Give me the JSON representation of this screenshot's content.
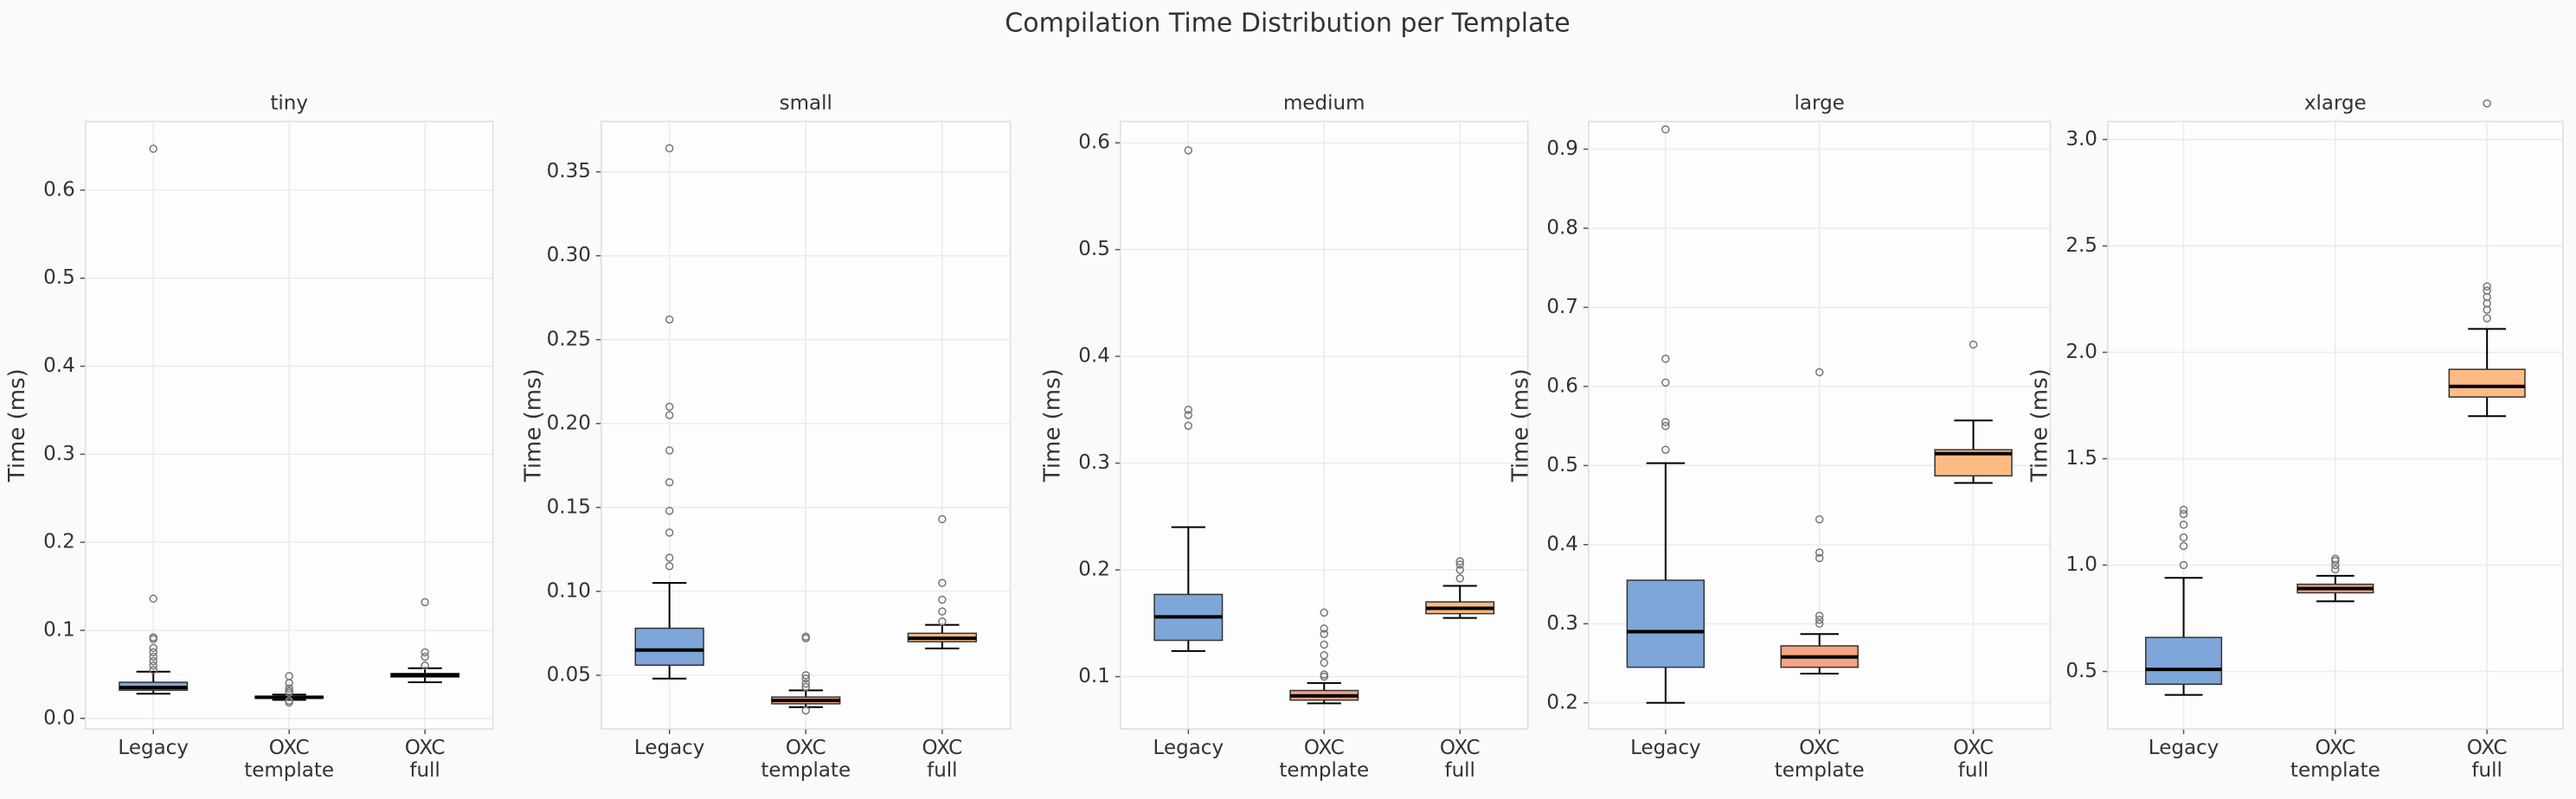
{
  "title": "Compilation Time Distribution per Template",
  "chart_data": [
    {
      "type": "box",
      "title": "tiny",
      "ylabel": "Time (ms)",
      "categories": [
        "Legacy",
        "OXC\ntemplate",
        "OXC\nfull"
      ],
      "colors": [
        "#7ea6d8",
        "#f4a582",
        "#fdbb84"
      ],
      "boxes": [
        {
          "whislo": 0.028,
          "q1": 0.032,
          "med": 0.035,
          "q3": 0.041,
          "whishi": 0.053,
          "fliers": [
            0.055,
            0.06,
            0.065,
            0.07,
            0.075,
            0.08,
            0.09,
            0.092,
            0.136,
            0.647
          ]
        },
        {
          "whislo": 0.021,
          "q1": 0.023,
          "med": 0.024,
          "q3": 0.025,
          "whishi": 0.027,
          "fliers": [
            0.018,
            0.02,
            0.029,
            0.031,
            0.034,
            0.04,
            0.048
          ]
        },
        {
          "whislo": 0.041,
          "q1": 0.047,
          "med": 0.049,
          "q3": 0.051,
          "whishi": 0.057,
          "fliers": [
            0.06,
            0.07,
            0.075,
            0.132
          ]
        }
      ],
      "ylim": [
        -0.012,
        0.678
      ],
      "yticks": [
        {
          "value": 0,
          "label": "0.0"
        },
        0.1,
        0.2,
        0.3,
        0.4,
        0.5,
        0.6
      ],
      "grid": true
    },
    {
      "type": "box",
      "title": "small",
      "ylabel": "Time (ms)",
      "categories": [
        "Legacy",
        "OXC\ntemplate",
        "OXC\nfull"
      ],
      "colors": [
        "#7ea6d8",
        "#f4a582",
        "#fdbb84"
      ],
      "boxes": [
        {
          "whislo": 0.048,
          "q1": 0.056,
          "med": 0.065,
          "q3": 0.078,
          "whishi": 0.105,
          "fliers": [
            0.115,
            0.12,
            0.135,
            0.148,
            0.165,
            0.184,
            0.205,
            0.21,
            0.262,
            0.364
          ]
        },
        {
          "whislo": 0.031,
          "q1": 0.033,
          "med": 0.035,
          "q3": 0.037,
          "whishi": 0.041,
          "fliers": [
            0.029,
            0.043,
            0.045,
            0.048,
            0.05,
            0.072,
            0.073
          ]
        },
        {
          "whislo": 0.066,
          "q1": 0.07,
          "med": 0.072,
          "q3": 0.075,
          "whishi": 0.08,
          "fliers": [
            0.082,
            0.088,
            0.095,
            0.105,
            0.143
          ]
        }
      ],
      "ylim": [
        0.018,
        0.38
      ],
      "yticks": [
        0.05,
        {
          "value": 0.1,
          "label": "0.10"
        },
        0.15,
        {
          "value": 0.2,
          "label": "0.20"
        },
        0.25,
        {
          "value": 0.3,
          "label": "0.30"
        },
        0.35
      ],
      "grid": true
    },
    {
      "type": "box",
      "title": "medium",
      "ylabel": "Time (ms)",
      "categories": [
        "Legacy",
        "OXC\ntemplate",
        "OXC\nfull"
      ],
      "colors": [
        "#7ea6d8",
        "#f4a582",
        "#fdbb84"
      ],
      "boxes": [
        {
          "whislo": 0.124,
          "q1": 0.134,
          "med": 0.156,
          "q3": 0.177,
          "whishi": 0.24,
          "fliers": [
            0.335,
            0.345,
            0.35,
            0.593
          ]
        },
        {
          "whislo": 0.075,
          "q1": 0.078,
          "med": 0.082,
          "q3": 0.087,
          "whishi": 0.094,
          "fliers": [
            0.1,
            0.102,
            0.113,
            0.12,
            0.13,
            0.14,
            0.145,
            0.16
          ]
        },
        {
          "whislo": 0.155,
          "q1": 0.159,
          "med": 0.164,
          "q3": 0.17,
          "whishi": 0.185,
          "fliers": [
            0.192,
            0.2,
            0.205,
            0.208
          ]
        }
      ],
      "ylim": [
        0.051,
        0.62
      ],
      "yticks": [
        0.1,
        0.2,
        0.3,
        0.4,
        0.5,
        0.6
      ],
      "grid": true
    },
    {
      "type": "box",
      "title": "large",
      "ylabel": "Time (ms)",
      "categories": [
        "Legacy",
        "OXC\ntemplate",
        "OXC\nfull"
      ],
      "colors": [
        "#7ea6d8",
        "#f4a582",
        "#fdbb84"
      ],
      "boxes": [
        {
          "whislo": 0.2,
          "q1": 0.245,
          "med": 0.29,
          "q3": 0.355,
          "whishi": 0.503,
          "fliers": [
            0.52,
            0.55,
            0.555,
            0.605,
            0.635,
            0.925
          ]
        },
        {
          "whislo": 0.237,
          "q1": 0.245,
          "med": 0.258,
          "q3": 0.272,
          "whishi": 0.287,
          "fliers": [
            0.3,
            0.305,
            0.31,
            0.383,
            0.39,
            0.432,
            0.618
          ]
        },
        {
          "whislo": 0.478,
          "q1": 0.487,
          "med": 0.515,
          "q3": 0.52,
          "whishi": 0.557,
          "fliers": [
            0.653
          ]
        }
      ],
      "ylim": [
        0.167,
        0.935
      ],
      "yticks": [
        0.2,
        0.3,
        0.4,
        0.5,
        0.6,
        0.7,
        0.8,
        0.9
      ],
      "grid": true
    },
    {
      "type": "box",
      "title": "xlarge",
      "ylabel": "Time (ms)",
      "categories": [
        "Legacy",
        "OXC\ntemplate",
        "OXC\nfull"
      ],
      "colors": [
        "#7ea6d8",
        "#f4a582",
        "#fdbb84"
      ],
      "boxes": [
        {
          "whislo": 0.39,
          "q1": 0.44,
          "med": 0.51,
          "q3": 0.66,
          "whishi": 0.94,
          "fliers": [
            1.0,
            1.09,
            1.13,
            1.19,
            1.24,
            1.26
          ]
        },
        {
          "whislo": 0.83,
          "q1": 0.87,
          "med": 0.89,
          "q3": 0.91,
          "whishi": 0.95,
          "fliers": [
            0.98,
            1.0,
            1.02,
            1.03
          ]
        },
        {
          "whislo": 1.7,
          "q1": 1.79,
          "med": 1.84,
          "q3": 1.92,
          "whishi": 2.11,
          "fliers": [
            2.16,
            2.2,
            2.23,
            2.26,
            2.29,
            2.31,
            3.17
          ]
        }
      ],
      "ylim": [
        0.23,
        3.085
      ],
      "yticks": [
        0.5,
        {
          "value": 1.0,
          "label": "1.0"
        },
        1.5,
        {
          "value": 2.0,
          "label": "2.0"
        },
        2.5,
        {
          "value": 3.0,
          "label": "3.0"
        }
      ],
      "grid": true
    }
  ]
}
